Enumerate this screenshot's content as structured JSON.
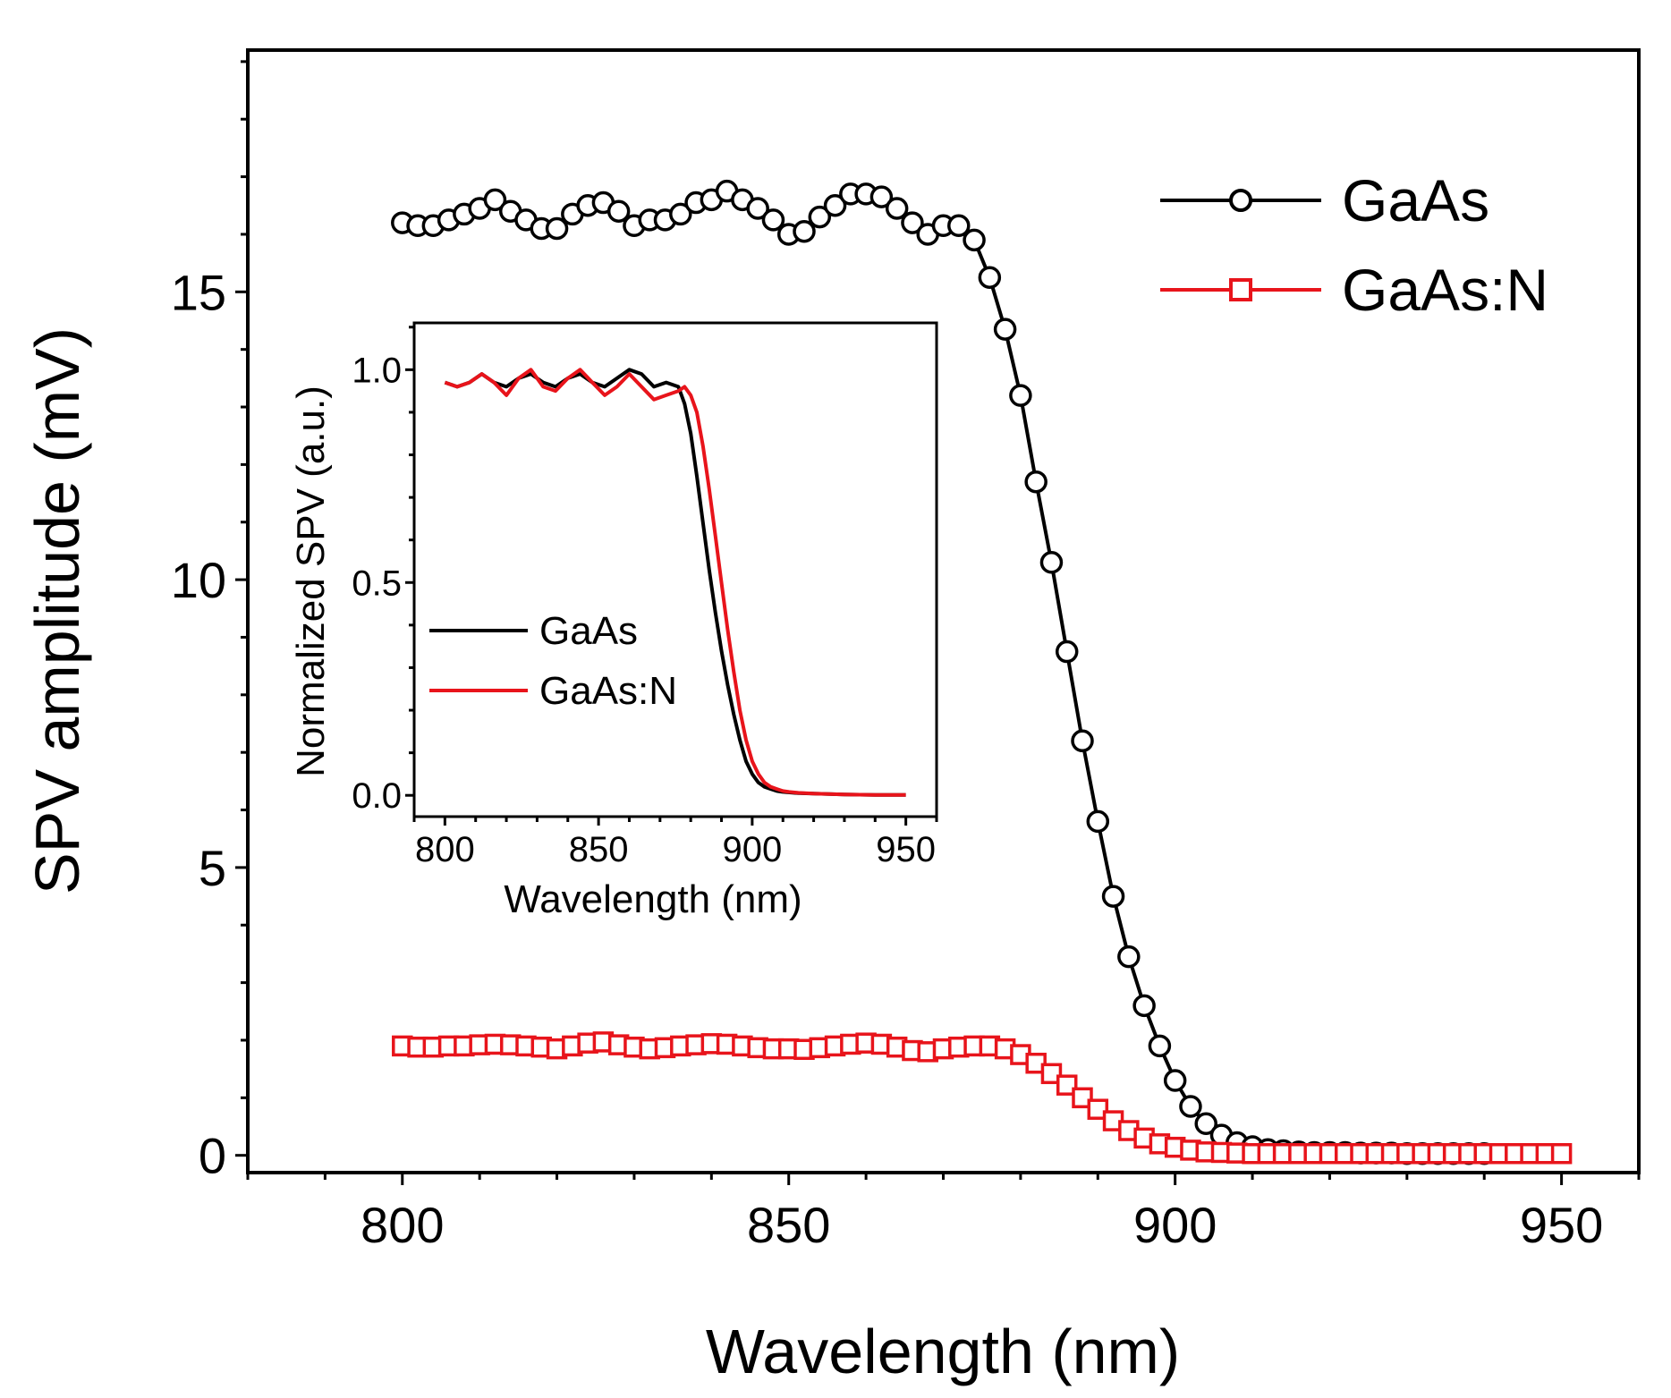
{
  "chart_data": [
    {
      "id": "main",
      "type": "line",
      "title": "",
      "xlabel": "Wavelength (nm)",
      "ylabel": "SPV amplitude (mV)",
      "xlim": [
        780,
        960
      ],
      "ylim": [
        -0.3,
        19.2
      ],
      "xticks": [
        800,
        850,
        900,
        950
      ],
      "yticks": [
        0,
        5,
        10,
        15
      ],
      "legend_position": "top-right",
      "series": [
        {
          "name": "GaAs",
          "color": "#000000",
          "marker": "circle",
          "x": [
            800,
            802,
            804,
            806,
            808,
            810,
            812,
            814,
            816,
            818,
            820,
            822,
            824,
            826,
            828,
            830,
            832,
            834,
            836,
            838,
            840,
            842,
            844,
            846,
            848,
            850,
            852,
            854,
            856,
            858,
            860,
            862,
            864,
            866,
            868,
            870,
            872,
            874,
            876,
            878,
            880,
            882,
            884,
            886,
            888,
            890,
            892,
            894,
            896,
            898,
            900,
            902,
            904,
            906,
            908,
            910,
            912,
            914,
            916,
            918,
            920,
            922,
            924,
            926,
            928,
            930,
            932,
            934,
            936,
            938,
            940
          ],
          "y": [
            16.2,
            16.15,
            16.15,
            16.25,
            16.35,
            16.45,
            16.6,
            16.4,
            16.25,
            16.1,
            16.1,
            16.35,
            16.5,
            16.55,
            16.4,
            16.15,
            16.25,
            16.25,
            16.35,
            16.55,
            16.6,
            16.75,
            16.6,
            16.45,
            16.25,
            16.0,
            16.05,
            16.3,
            16.5,
            16.7,
            16.7,
            16.65,
            16.45,
            16.2,
            16.0,
            16.15,
            16.15,
            15.9,
            15.25,
            14.35,
            13.2,
            11.7,
            10.3,
            8.75,
            7.2,
            5.8,
            4.5,
            3.45,
            2.6,
            1.9,
            1.3,
            0.85,
            0.55,
            0.35,
            0.22,
            0.15,
            0.1,
            0.08,
            0.06,
            0.05,
            0.05,
            0.05,
            0.04,
            0.04,
            0.04,
            0.03,
            0.03,
            0.03,
            0.03,
            0.03,
            0.03
          ]
        },
        {
          "name": "GaAs:N",
          "color": "#e8141b",
          "marker": "square",
          "x": [
            800,
            802,
            804,
            806,
            808,
            810,
            812,
            814,
            816,
            818,
            820,
            822,
            824,
            826,
            828,
            830,
            832,
            834,
            836,
            838,
            840,
            842,
            844,
            846,
            848,
            850,
            852,
            854,
            856,
            858,
            860,
            862,
            864,
            866,
            868,
            870,
            872,
            874,
            876,
            878,
            880,
            882,
            884,
            886,
            888,
            890,
            892,
            894,
            896,
            898,
            900,
            902,
            904,
            906,
            908,
            910,
            912,
            914,
            916,
            918,
            920,
            922,
            924,
            926,
            928,
            930,
            932,
            934,
            936,
            938,
            940,
            942,
            944,
            946,
            948,
            950
          ],
          "y": [
            1.9,
            1.88,
            1.88,
            1.9,
            1.9,
            1.92,
            1.93,
            1.92,
            1.9,
            1.88,
            1.85,
            1.9,
            1.95,
            1.97,
            1.92,
            1.88,
            1.85,
            1.87,
            1.9,
            1.92,
            1.94,
            1.93,
            1.9,
            1.87,
            1.85,
            1.85,
            1.84,
            1.87,
            1.9,
            1.93,
            1.95,
            1.93,
            1.88,
            1.82,
            1.8,
            1.85,
            1.88,
            1.9,
            1.9,
            1.85,
            1.75,
            1.6,
            1.42,
            1.22,
            1.0,
            0.8,
            0.6,
            0.43,
            0.3,
            0.2,
            0.14,
            0.09,
            0.06,
            0.05,
            0.04,
            0.03,
            0.03,
            0.03,
            0.03,
            0.03,
            0.03,
            0.03,
            0.03,
            0.03,
            0.03,
            0.03,
            0.03,
            0.03,
            0.03,
            0.03,
            0.03,
            0.03,
            0.03,
            0.03,
            0.03,
            0.03
          ]
        }
      ]
    },
    {
      "id": "inset",
      "type": "line",
      "title": "",
      "xlabel": "Wavelength (nm)",
      "ylabel": "Normalized SPV (a.u.)",
      "xlim": [
        790,
        960
      ],
      "ylim": [
        -0.05,
        1.11
      ],
      "xticks": [
        800,
        850,
        900,
        950
      ],
      "yticks": [
        0.0,
        0.5,
        1.0
      ],
      "ytick_labels": [
        "0.0",
        "0.5",
        "1.0"
      ],
      "legend_position": "middle-left",
      "series": [
        {
          "name": "GaAs",
          "color": "#000000",
          "x": [
            800,
            804,
            808,
            812,
            816,
            820,
            824,
            828,
            832,
            836,
            840,
            844,
            848,
            852,
            856,
            860,
            864,
            868,
            872,
            876,
            878,
            880,
            882,
            884,
            886,
            888,
            890,
            892,
            894,
            896,
            898,
            900,
            902,
            904,
            906,
            908,
            910,
            915,
            920,
            930,
            940,
            950
          ],
          "y": [
            0.97,
            0.96,
            0.97,
            0.99,
            0.97,
            0.96,
            0.98,
            0.99,
            0.97,
            0.96,
            0.98,
            0.99,
            0.97,
            0.96,
            0.98,
            1.0,
            0.99,
            0.96,
            0.97,
            0.96,
            0.92,
            0.85,
            0.75,
            0.64,
            0.53,
            0.43,
            0.34,
            0.26,
            0.19,
            0.13,
            0.08,
            0.05,
            0.03,
            0.02,
            0.015,
            0.01,
            0.008,
            0.005,
            0.004,
            0.002,
            0.001,
            0.001
          ]
        },
        {
          "name": "GaAs:N",
          "color": "#e8141b",
          "x": [
            800,
            804,
            808,
            812,
            816,
            820,
            824,
            828,
            832,
            836,
            840,
            844,
            848,
            852,
            856,
            860,
            864,
            868,
            872,
            876,
            878,
            880,
            882,
            884,
            886,
            888,
            890,
            892,
            894,
            896,
            898,
            900,
            902,
            904,
            906,
            908,
            910,
            912,
            915,
            920,
            930,
            940,
            950
          ],
          "y": [
            0.97,
            0.96,
            0.97,
            0.99,
            0.97,
            0.94,
            0.98,
            1.0,
            0.96,
            0.95,
            0.98,
            1.0,
            0.97,
            0.94,
            0.96,
            0.99,
            0.96,
            0.93,
            0.94,
            0.95,
            0.96,
            0.94,
            0.9,
            0.82,
            0.72,
            0.61,
            0.5,
            0.39,
            0.29,
            0.2,
            0.13,
            0.08,
            0.05,
            0.03,
            0.02,
            0.015,
            0.01,
            0.008,
            0.006,
            0.004,
            0.002,
            0.001,
            0.001
          ]
        }
      ]
    }
  ]
}
